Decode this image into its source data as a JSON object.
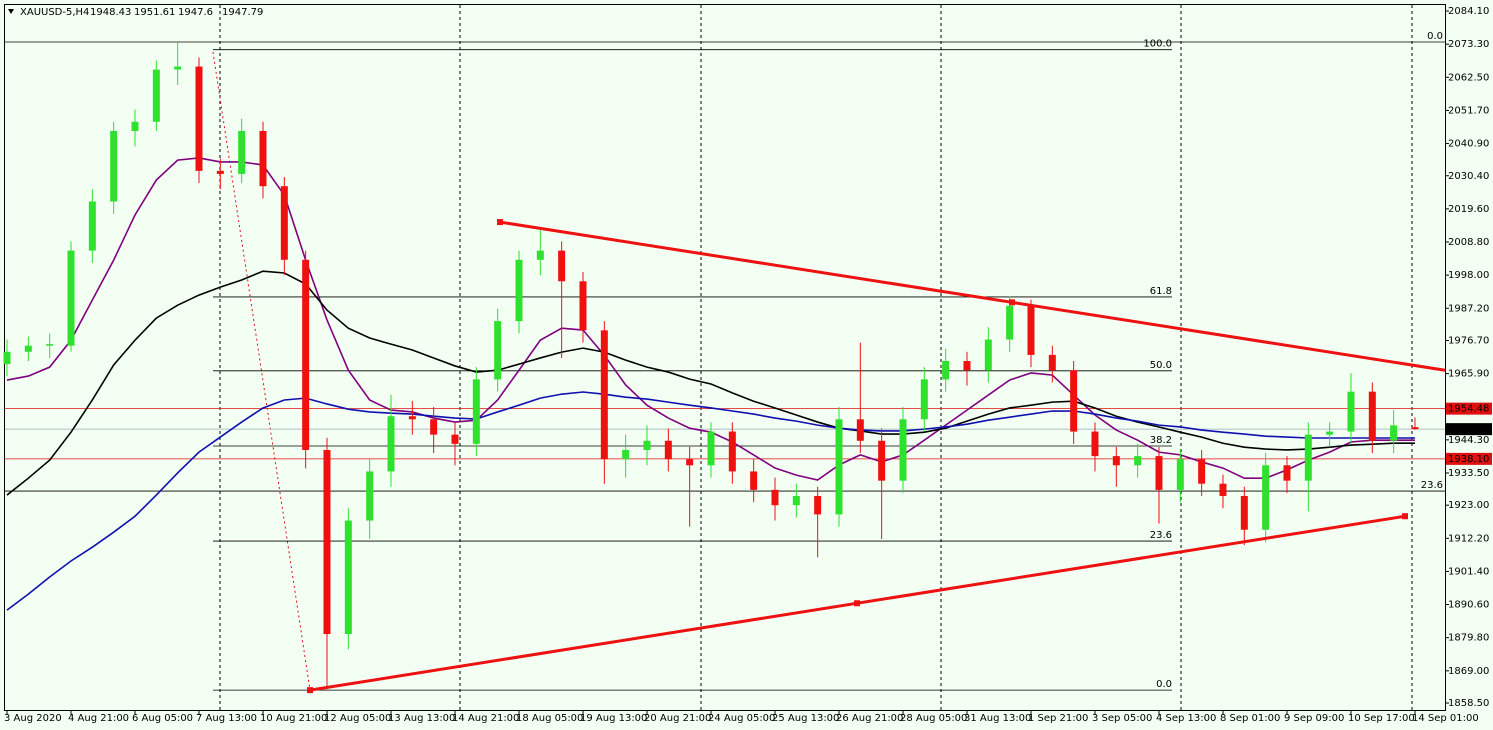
{
  "chart_data": {
    "type": "candlestick",
    "symbol": "XAUUSD-5,H4",
    "categories": [
      "3 Aug 2020",
      null,
      null,
      "4 Aug 21:00",
      null,
      null,
      "6 Aug 05:00",
      null,
      null,
      "7 Aug 13:00",
      null,
      null,
      "10 Aug 21:00",
      null,
      null,
      "12 Aug 05:00",
      null,
      null,
      "13 Aug 13:00",
      null,
      null,
      "14 Aug 21:00",
      null,
      null,
      "18 Aug 05:00",
      null,
      null,
      "19 Aug 13:00",
      null,
      null,
      "20 Aug 21:00",
      null,
      null,
      "24 Aug 05:00",
      null,
      null,
      "25 Aug 13:00",
      null,
      null,
      "26 Aug 21:00",
      null,
      null,
      "28 Aug 05:00",
      null,
      null,
      "31 Aug 13:00",
      null,
      null,
      "1 Sep 21:00",
      null,
      null,
      "3 Sep 05:00",
      null,
      null,
      "4 Sep 13:00",
      null,
      null,
      "8 Sep 01:00",
      null,
      null,
      "9 Sep 09:00",
      null,
      null,
      "10 Sep 17:00",
      null,
      null,
      "14 Sep 01:00"
    ],
    "open": [
      1969,
      1973,
      1975,
      1975,
      2006,
      2022,
      2045,
      2048,
      2065,
      2066,
      2032,
      2031,
      2045,
      2027,
      2003,
      1941,
      1881,
      1918,
      1934,
      1952,
      1951,
      1946,
      1943,
      1964,
      1983,
      2003,
      2006,
      1996,
      1980,
      1938,
      1941,
      1944,
      1938,
      1936,
      1947,
      1934,
      1928,
      1923,
      1926,
      1920,
      1951,
      1944,
      1931,
      1951,
      1964,
      1970,
      1967,
      1977,
      1988,
      1972,
      1967,
      1947,
      1939,
      1936,
      1939,
      1928,
      1938,
      1930,
      1926,
      1915,
      1936,
      1931,
      1946,
      1947,
      1960,
      1944,
      1948.43
    ],
    "high": [
      1977,
      1978,
      1979,
      2009,
      2026,
      2048,
      2052,
      2068,
      2074,
      2069,
      2036,
      2049,
      2048,
      2030,
      2006,
      1945,
      1922,
      1938,
      1959,
      1957,
      1955,
      1950,
      1968,
      1987,
      2006,
      2013,
      2009,
      1999,
      1983,
      1946,
      1949,
      1948,
      1942,
      1950,
      1950,
      1938,
      1932,
      1930,
      1929,
      1955,
      1976,
      1948,
      1955,
      1968,
      1974,
      1973,
      1981,
      1991,
      1990,
      1975,
      1970,
      1950,
      1942,
      1943,
      1942,
      1941,
      1941,
      1933,
      1929,
      1940,
      1939,
      1950,
      1950,
      1966,
      1963,
      1954,
      1951.61
    ],
    "low": [
      1965,
      1970,
      1971,
      1973,
      2002,
      2018,
      2040,
      2045,
      2060,
      2028,
      2026,
      2028,
      2023,
      1998,
      1935,
      1863,
      1876,
      1912,
      1929,
      1946,
      1940,
      1936,
      1939,
      1960,
      1979,
      1998,
      1971,
      1976,
      1930,
      1932,
      1936,
      1934,
      1916,
      1932,
      1930,
      1924,
      1918,
      1919,
      1906,
      1916,
      1940,
      1912,
      1927,
      1947,
      1960,
      1962,
      1963,
      1973,
      1968,
      1963,
      1943,
      1934,
      1929,
      1932,
      1917,
      1924,
      1926,
      1922,
      1910,
      1911,
      1927,
      1921,
      1942,
      1943,
      1940,
      1940,
      1947.6
    ],
    "close": [
      1973,
      1975,
      1975.5,
      2006,
      2022,
      2045,
      2048,
      2065,
      2066,
      2032,
      2031,
      2045,
      2027,
      2003,
      1941,
      1881,
      1918,
      1934,
      1952,
      1951,
      1946,
      1943,
      1964,
      1983,
      2003,
      2006,
      1996,
      1980,
      1938,
      1941,
      1944,
      1938,
      1936,
      1947,
      1934,
      1928,
      1923,
      1926,
      1920,
      1951,
      1944,
      1931,
      1951,
      1964,
      1970,
      1967,
      1977,
      1988,
      1972,
      1967,
      1947,
      1939,
      1936,
      1939,
      1928,
      1938,
      1930,
      1926,
      1915,
      1936,
      1931,
      1946,
      1947,
      1960,
      1944,
      1949,
      1947.79
    ],
    "up_color": "#2fe02f",
    "down_color": "#f01010",
    "ylim": [
      1855.9,
      2087.7
    ],
    "yticks": [
      {
        "value": 2084.1,
        "label": "2084.10"
      },
      {
        "value": 2073.3,
        "label": "2073.30"
      },
      {
        "value": 2062.5,
        "label": "2062.50"
      },
      {
        "value": 2051.7,
        "label": "2051.70"
      },
      {
        "value": 2040.9,
        "label": "2040.90"
      },
      {
        "value": 2030.4,
        "label": "2030.40"
      },
      {
        "value": 2019.6,
        "label": "2019.60"
      },
      {
        "value": 2008.8,
        "label": "2008.80"
      },
      {
        "value": 1998,
        "label": "1998.00"
      },
      {
        "value": 1987.2,
        "label": "1987.20"
      },
      {
        "value": 1976.7,
        "label": "1976.70"
      },
      {
        "value": 1965.9,
        "label": "1965.90"
      },
      {
        "value": 1944.3,
        "label": "1944.30"
      },
      {
        "value": 1933.5,
        "label": "1933.50"
      },
      {
        "value": 1923,
        "label": "1923.00"
      },
      {
        "value": 1912.2,
        "label": "1912.20"
      },
      {
        "value": 1901.4,
        "label": "1901.40"
      },
      {
        "value": 1890.6,
        "label": "1890.60"
      },
      {
        "value": 1879.8,
        "label": "1879.80"
      },
      {
        "value": 1869,
        "label": "1869.00"
      },
      {
        "value": 1858.5,
        "label": "1858.50"
      }
    ],
    "moving_averages": [
      {
        "color": "#800080",
        "values": [
          1963.8,
          1965.1,
          1968.0,
          1976.8,
          1989.9,
          2002.9,
          2017.6,
          2029.0,
          2035.5,
          2036.2,
          2034.9,
          2034.9,
          2033.9,
          2024.1,
          2002.9,
          1983.4,
          1967.0,
          1957.3,
          1954.0,
          1953.4,
          1951.4,
          1950.1,
          1950.7,
          1957.3,
          1967.0,
          1976.8,
          1980.7,
          1980.1,
          1971.9,
          1962.2,
          1955.6,
          1951.4,
          1948.1,
          1946.8,
          1943.6,
          1939.4,
          1935.1,
          1932.8,
          1931.2,
          1936.1,
          1939.4,
          1937.1,
          1939.4,
          1944.2,
          1949.1,
          1954.0,
          1958.9,
          1963.8,
          1966.1,
          1965.4,
          1958.9,
          1952.4,
          1947.5,
          1944.2,
          1940.3,
          1939.4,
          1937.1,
          1935.1,
          1931.8,
          1931.8,
          1934.5,
          1937.7,
          1940.3,
          1943.6,
          1944.2,
          1944.2,
          1944.2
        ]
      },
      {
        "color": "#000000",
        "values": [
          1926.3,
          1931.8,
          1937.7,
          1946.8,
          1957.3,
          1968.7,
          1976.8,
          1984.0,
          1988.2,
          1991.5,
          1994.1,
          1996.4,
          1999.3,
          1998.7,
          1995.1,
          1986.6,
          1980.7,
          1977.5,
          1975.5,
          1973.6,
          1971.0,
          1968.4,
          1966.4,
          1967.0,
          1969.0,
          1971.0,
          1972.9,
          1974.2,
          1972.9,
          1970.3,
          1968.0,
          1966.4,
          1964.1,
          1962.5,
          1959.6,
          1956.9,
          1954.7,
          1952.4,
          1950.1,
          1948.1,
          1947.2,
          1946.2,
          1946.2,
          1946.8,
          1948.1,
          1950.4,
          1952.7,
          1954.7,
          1955.6,
          1956.6,
          1956.9,
          1954.7,
          1952.0,
          1950.1,
          1948.5,
          1946.8,
          1945.2,
          1943.2,
          1941.9,
          1941.3,
          1941.0,
          1941.3,
          1941.9,
          1942.6,
          1942.9,
          1943.2,
          1943.2
        ]
      },
      {
        "color": "#1010b0",
        "values": [
          1888.8,
          1894.0,
          1899.6,
          1904.8,
          1909.3,
          1914.2,
          1919.4,
          1926.3,
          1933.5,
          1940.3,
          1945.2,
          1950.1,
          1954.7,
          1957.3,
          1957.9,
          1956.0,
          1954.3,
          1953.4,
          1953.0,
          1952.7,
          1952.0,
          1951.4,
          1951.1,
          1953.4,
          1955.6,
          1957.9,
          1959.2,
          1959.9,
          1959.2,
          1958.2,
          1957.6,
          1956.6,
          1955.6,
          1954.7,
          1953.7,
          1952.7,
          1951.4,
          1950.4,
          1949.1,
          1948.1,
          1947.5,
          1947.2,
          1947.2,
          1947.8,
          1948.5,
          1949.4,
          1950.7,
          1951.7,
          1952.7,
          1953.7,
          1953.7,
          1952.7,
          1951.4,
          1950.4,
          1949.1,
          1948.5,
          1947.5,
          1946.8,
          1946.2,
          1945.5,
          1945.2,
          1944.9,
          1944.9,
          1944.9,
          1944.9,
          1944.9,
          1944.9
        ]
      }
    ],
    "fibonacci": [
      {
        "label": "100.0",
        "price": 2071.5
      },
      {
        "label": "61.8",
        "price": 1990.9
      },
      {
        "label": "50.0",
        "price": 1966.8
      },
      {
        "label": "38.2",
        "price": 1942.3
      },
      {
        "label": "23.6",
        "price": 1911.3
      },
      {
        "label": "0.0",
        "price": 1862.7
      }
    ],
    "fibonacci_right": [
      {
        "label": "0.0",
        "price": 2074.0
      },
      {
        "label": "23.6",
        "price": 1927.6
      }
    ],
    "trendlines": [
      {
        "color": "#ee1111",
        "prices": [
          2015.3,
          1967.0
        ]
      },
      {
        "color": "#ee1111",
        "prices": [
          1862.7,
          1919.4
        ]
      }
    ],
    "price_lines": [
      1954.48,
      {
        "value": 1938.1,
        "label": "1938.10"
      }
    ],
    "price_line_color": "#e01010"
  }
}
